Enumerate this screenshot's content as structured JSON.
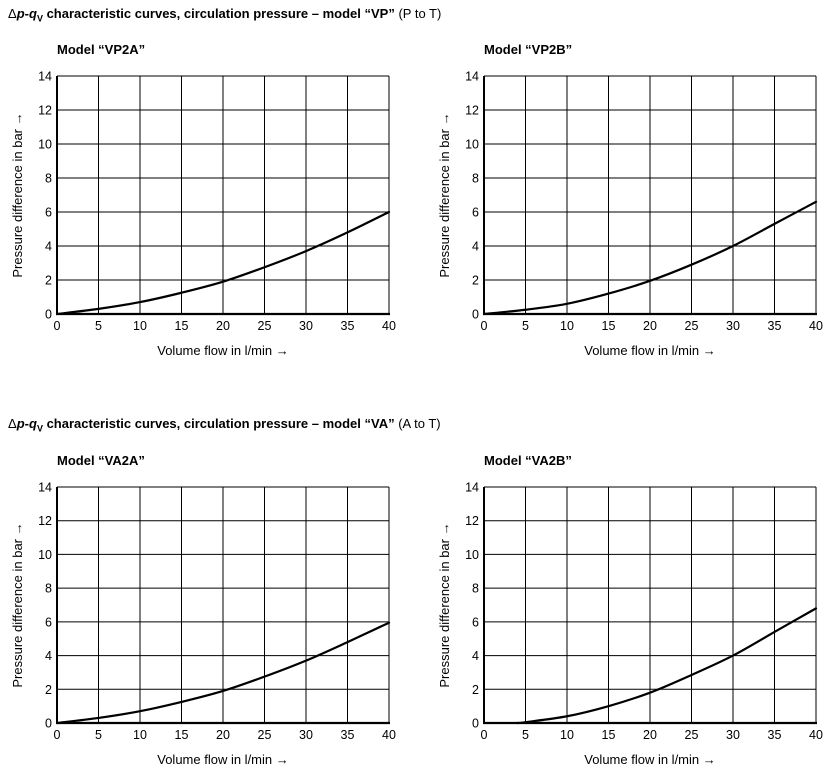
{
  "sections": [
    {
      "delta": "Δ",
      "p": "p",
      "dash": "-",
      "q": "q",
      "sub": "V",
      "title_rest": " characteristic curves, circulation pressure – model ",
      "model": "“VP”",
      "paren": " (P to T)"
    },
    {
      "delta": "Δ",
      "p": "p",
      "dash": "-",
      "q": "q",
      "sub": "V",
      "title_rest": " characteristic curves, circulation pressure – model ",
      "model": "“VA”",
      "paren": " (A to T)"
    }
  ],
  "chart_data": [
    {
      "type": "line",
      "title": "Model “VP2A”",
      "xlabel": "Volume flow in l/min →",
      "ylabel": "Pressure difference in bar →",
      "xlim": [
        0,
        40
      ],
      "ylim": [
        0,
        14
      ],
      "xticks": [
        0,
        5,
        10,
        15,
        20,
        25,
        30,
        35,
        40
      ],
      "yticks": [
        0,
        2,
        4,
        6,
        8,
        10,
        12,
        14
      ],
      "grid": true,
      "series": [
        {
          "x": [
            0,
            5,
            10,
            15,
            20,
            25,
            30,
            35,
            40
          ],
          "y": [
            0,
            0.3,
            0.7,
            1.25,
            1.9,
            2.75,
            3.7,
            4.8,
            6.0
          ]
        }
      ]
    },
    {
      "type": "line",
      "title": "Model “VP2B”",
      "xlabel": "Volume flow in l/min →",
      "ylabel": "Pressure difference in bar →",
      "xlim": [
        0,
        40
      ],
      "ylim": [
        0,
        14
      ],
      "xticks": [
        0,
        5,
        10,
        15,
        20,
        25,
        30,
        35,
        40
      ],
      "yticks": [
        0,
        2,
        4,
        6,
        8,
        10,
        12,
        14
      ],
      "grid": true,
      "series": [
        {
          "x": [
            0,
            5,
            10,
            15,
            20,
            25,
            30,
            35,
            40
          ],
          "y": [
            0,
            0.25,
            0.6,
            1.2,
            1.95,
            2.9,
            4.0,
            5.3,
            6.6
          ]
        }
      ]
    },
    {
      "type": "line",
      "title": "Model “VA2A”",
      "xlabel": "Volume flow in l/min →",
      "ylabel": "Pressure difference in bar →",
      "xlim": [
        0,
        40
      ],
      "ylim": [
        0,
        14
      ],
      "xticks": [
        0,
        5,
        10,
        15,
        20,
        25,
        30,
        35,
        40
      ],
      "yticks": [
        0,
        2,
        4,
        6,
        8,
        10,
        12,
        14
      ],
      "grid": true,
      "series": [
        {
          "x": [
            0,
            5,
            10,
            15,
            20,
            25,
            30,
            35,
            40
          ],
          "y": [
            0,
            0.3,
            0.7,
            1.25,
            1.9,
            2.75,
            3.7,
            4.8,
            5.95
          ]
        }
      ]
    },
    {
      "type": "line",
      "title": "Model “VA2B”",
      "xlabel": "Volume flow in l/min →",
      "ylabel": "Pressure difference in bar →",
      "xlim": [
        0,
        40
      ],
      "ylim": [
        0,
        14
      ],
      "xticks": [
        0,
        5,
        10,
        15,
        20,
        25,
        30,
        35,
        40
      ],
      "yticks": [
        0,
        2,
        4,
        6,
        8,
        10,
        12,
        14
      ],
      "grid": true,
      "series": [
        {
          "x": [
            4,
            5,
            10,
            15,
            20,
            25,
            30,
            35,
            40
          ],
          "y": [
            0,
            0.05,
            0.4,
            1.0,
            1.8,
            2.85,
            4.0,
            5.4,
            6.8
          ]
        }
      ]
    }
  ]
}
